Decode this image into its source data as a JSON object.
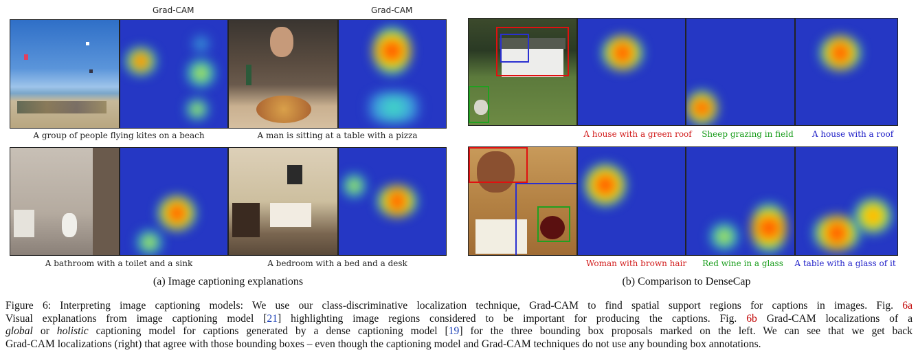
{
  "panel_a": {
    "gradcam_label_1": "Grad-CAM",
    "gradcam_label_2": "Grad-CAM",
    "captions": [
      "A group of people flying kites on a beach",
      "A man is sitting at a table with a pizza",
      "A bathroom with a toilet and a sink",
      "A bedroom with a bed and a desk"
    ],
    "subcaption": "(a) Image captioning explanations"
  },
  "panel_b": {
    "row1_captions": [
      "A house with a green roof",
      "Sheep grazing in field",
      "A house with a roof"
    ],
    "row2_captions": [
      "Woman with brown hair",
      "Red wine in a glass",
      "A table with a glass of it"
    ],
    "subcaption": "(b) Comparison to DenseCap"
  },
  "colors": {
    "red": "#d21d1d",
    "green": "#179c1a",
    "blue": "#2020c8",
    "ref": "#c00000"
  },
  "figure_caption": {
    "l1": {
      "text": "Figure 6: Interpreting image captioning models: We use our class-discriminative localization technique, Grad-CAM to find spatial support regions for captions in images. Fig.",
      "ref": "6a"
    },
    "l2": {
      "a": "Visual explanations from image captioning model [",
      "r1": "21",
      "b": "] highlighting image regions considered to be important for producing the captions. Fig.",
      "ref": "6b",
      "c": "Grad-CAM localizations of a"
    },
    "l3": {
      "global": "global",
      "or": "or",
      "holistic": "holistic",
      "a": "captioning model for captions generated by a dense captioning model [",
      "r1": "19",
      "b": "] for the three bounding box proposals marked on the left. We can see that we get back"
    },
    "l4": {
      "text": "Grad-CAM localizations (right) that agree with those bounding boxes – even though the captioning model and Grad-CAM techniques do not use any bounding box annotations."
    }
  }
}
